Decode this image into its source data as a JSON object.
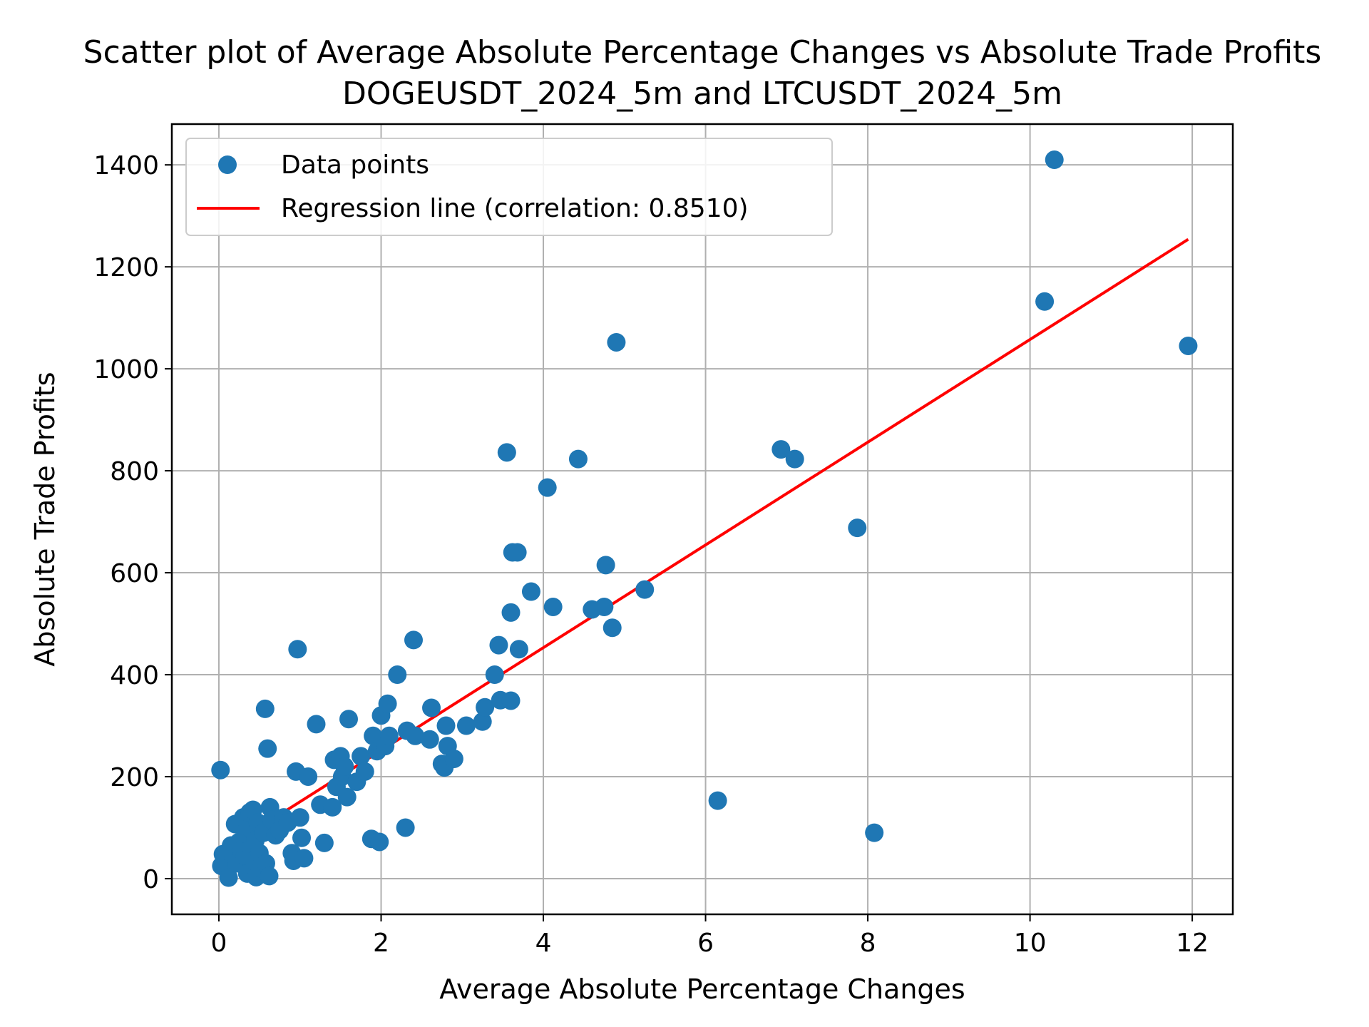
{
  "chart_data": {
    "type": "scatter",
    "title": "Scatter plot of Average Absolute Percentage Changes vs Absolute Trade Profits",
    "subtitle": "DOGEUSDT_2024_5m and LTCUSDT_2024_5m",
    "xlabel": "Average Absolute Percentage Changes",
    "ylabel": "Absolute Trade Profits",
    "xlim": [
      -0.58,
      12.5
    ],
    "ylim": [
      -70,
      1480
    ],
    "xticks": [
      0,
      2,
      4,
      6,
      8,
      10,
      12
    ],
    "yticks": [
      0,
      200,
      400,
      600,
      800,
      1000,
      1200,
      1400
    ],
    "grid": true,
    "legend": "top-left",
    "colors": {
      "points": "#1f77b4",
      "regression": "#ff0000",
      "grid": "#b0b0b0"
    },
    "series": [
      {
        "name": "Data points",
        "kind": "scatter",
        "points": [
          [
            0.02,
            213
          ],
          [
            0.05,
            48
          ],
          [
            0.03,
            25
          ],
          [
            0.12,
            2
          ],
          [
            0.15,
            65
          ],
          [
            0.18,
            40
          ],
          [
            0.2,
            107
          ],
          [
            0.22,
            30
          ],
          [
            0.25,
            72
          ],
          [
            0.28,
            55
          ],
          [
            0.3,
            120
          ],
          [
            0.32,
            45
          ],
          [
            0.33,
            88
          ],
          [
            0.35,
            10
          ],
          [
            0.37,
            100
          ],
          [
            0.38,
            130
          ],
          [
            0.4,
            60
          ],
          [
            0.42,
            135
          ],
          [
            0.43,
            35
          ],
          [
            0.45,
            75
          ],
          [
            0.46,
            3
          ],
          [
            0.48,
            110
          ],
          [
            0.5,
            50
          ],
          [
            0.52,
            20
          ],
          [
            0.55,
            90
          ],
          [
            0.57,
            333
          ],
          [
            0.58,
            30
          ],
          [
            0.6,
            255
          ],
          [
            0.62,
            5
          ],
          [
            0.63,
            140
          ],
          [
            0.65,
            115
          ],
          [
            0.7,
            85
          ],
          [
            0.75,
            95
          ],
          [
            0.8,
            120
          ],
          [
            0.85,
            110
          ],
          [
            0.9,
            50
          ],
          [
            0.92,
            35
          ],
          [
            0.95,
            210
          ],
          [
            0.97,
            450
          ],
          [
            1.0,
            120
          ],
          [
            1.02,
            80
          ],
          [
            1.05,
            40
          ],
          [
            1.1,
            200
          ],
          [
            1.2,
            303
          ],
          [
            1.25,
            145
          ],
          [
            1.3,
            70
          ],
          [
            1.4,
            140
          ],
          [
            1.42,
            233
          ],
          [
            1.45,
            180
          ],
          [
            1.5,
            240
          ],
          [
            1.52,
            200
          ],
          [
            1.55,
            220
          ],
          [
            1.58,
            160
          ],
          [
            1.6,
            313
          ],
          [
            1.7,
            190
          ],
          [
            1.75,
            240
          ],
          [
            1.8,
            210
          ],
          [
            1.88,
            78
          ],
          [
            1.9,
            280
          ],
          [
            1.95,
            250
          ],
          [
            1.98,
            72
          ],
          [
            2.0,
            320
          ],
          [
            2.05,
            260
          ],
          [
            2.08,
            343
          ],
          [
            2.1,
            280
          ],
          [
            2.2,
            400
          ],
          [
            2.3,
            100
          ],
          [
            2.32,
            290
          ],
          [
            2.4,
            468
          ],
          [
            2.42,
            280
          ],
          [
            2.6,
            273
          ],
          [
            2.62,
            335
          ],
          [
            2.75,
            225
          ],
          [
            2.78,
            218
          ],
          [
            2.8,
            300
          ],
          [
            2.82,
            260
          ],
          [
            2.9,
            235
          ],
          [
            3.05,
            300
          ],
          [
            3.25,
            308
          ],
          [
            3.28,
            336
          ],
          [
            3.4,
            400
          ],
          [
            3.45,
            458
          ],
          [
            3.47,
            350
          ],
          [
            3.55,
            836
          ],
          [
            3.6,
            522
          ],
          [
            3.62,
            640
          ],
          [
            3.68,
            640
          ],
          [
            3.6,
            349
          ],
          [
            3.7,
            450
          ],
          [
            3.85,
            563
          ],
          [
            4.05,
            767
          ],
          [
            4.12,
            533
          ],
          [
            4.43,
            823
          ],
          [
            4.6,
            528
          ],
          [
            4.75,
            533
          ],
          [
            4.77,
            615
          ],
          [
            4.85,
            492
          ],
          [
            4.9,
            1052
          ],
          [
            5.25,
            567
          ],
          [
            6.15,
            153
          ],
          [
            6.93,
            842
          ],
          [
            7.1,
            823
          ],
          [
            7.87,
            688
          ],
          [
            8.08,
            90
          ],
          [
            10.18,
            1132
          ],
          [
            10.3,
            1410
          ],
          [
            11.95,
            1045
          ]
        ]
      },
      {
        "name": "Regression line (correlation: 0.8510)",
        "kind": "line",
        "points": [
          [
            0.0,
            50
          ],
          [
            11.95,
            1254
          ]
        ]
      }
    ]
  }
}
